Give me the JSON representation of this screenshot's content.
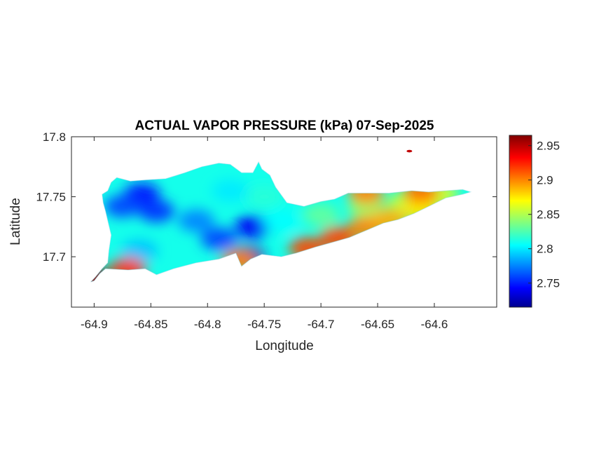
{
  "chart_data": {
    "type": "heatmap",
    "title": "ACTUAL VAPOR PRESSURE (kPa) 07-Sep-2025",
    "xlabel": "Longitude",
    "ylabel": "Latitude",
    "xlim": [
      -64.92,
      -64.545
    ],
    "ylim": [
      17.658,
      17.8
    ],
    "x_ticks": [
      -64.9,
      -64.85,
      -64.8,
      -64.75,
      -64.7,
      -64.65,
      -64.6
    ],
    "x_tick_labels": [
      "-64.9",
      "-64.85",
      "-64.8",
      "-64.75",
      "-64.7",
      "-64.65",
      "-64.6"
    ],
    "y_ticks": [
      17.7,
      17.75,
      17.8
    ],
    "y_tick_labels": [
      "17.7",
      "17.75",
      "17.8"
    ],
    "colorbar": {
      "range": [
        2.715,
        2.965
      ],
      "ticks": [
        2.75,
        2.8,
        2.85,
        2.9,
        2.95
      ],
      "tick_labels": [
        "2.75",
        "2.8",
        "2.85",
        "2.9",
        "2.95"
      ],
      "colormap": "jet"
    },
    "island_outline_lonlat": [
      [
        -64.9,
        17.68
      ],
      [
        -64.895,
        17.686
      ],
      [
        -64.89,
        17.69
      ],
      [
        -64.87,
        17.689
      ],
      [
        -64.855,
        17.69
      ],
      [
        -64.845,
        17.685
      ],
      [
        -64.83,
        17.69
      ],
      [
        -64.81,
        17.695
      ],
      [
        -64.79,
        17.698
      ],
      [
        -64.775,
        17.703
      ],
      [
        -64.77,
        17.692
      ],
      [
        -64.762,
        17.698
      ],
      [
        -64.752,
        17.702
      ],
      [
        -64.735,
        17.7
      ],
      [
        -64.722,
        17.703
      ],
      [
        -64.705,
        17.708
      ],
      [
        -64.69,
        17.712
      ],
      [
        -64.675,
        17.716
      ],
      [
        -64.66,
        17.722
      ],
      [
        -64.645,
        17.728
      ],
      [
        -64.632,
        17.731
      ],
      [
        -64.618,
        17.736
      ],
      [
        -64.605,
        17.742
      ],
      [
        -64.59,
        17.749
      ],
      [
        -64.575,
        17.752
      ],
      [
        -64.568,
        17.754
      ],
      [
        -64.575,
        17.756
      ],
      [
        -64.59,
        17.755
      ],
      [
        -64.605,
        17.754
      ],
      [
        -64.62,
        17.755
      ],
      [
        -64.64,
        17.753
      ],
      [
        -64.66,
        17.753
      ],
      [
        -64.676,
        17.753
      ],
      [
        -64.688,
        17.748
      ],
      [
        -64.7,
        17.746
      ],
      [
        -64.715,
        17.742
      ],
      [
        -64.73,
        17.745
      ],
      [
        -64.74,
        17.758
      ],
      [
        -64.745,
        17.768
      ],
      [
        -64.752,
        17.773
      ],
      [
        -64.755,
        17.779
      ],
      [
        -64.76,
        17.77
      ],
      [
        -64.77,
        17.77
      ],
      [
        -64.78,
        17.777
      ],
      [
        -64.79,
        17.778
      ],
      [
        -64.805,
        17.775
      ],
      [
        -64.82,
        17.77
      ],
      [
        -64.837,
        17.765
      ],
      [
        -64.855,
        17.764
      ],
      [
        -64.868,
        17.763
      ],
      [
        -64.88,
        17.766
      ],
      [
        -64.885,
        17.762
      ],
      [
        -64.888,
        17.755
      ],
      [
        -64.893,
        17.752
      ],
      [
        -64.892,
        17.745
      ],
      [
        -64.89,
        17.738
      ],
      [
        -64.888,
        17.73
      ],
      [
        -64.885,
        17.718
      ],
      [
        -64.887,
        17.705
      ],
      [
        -64.888,
        17.695
      ],
      [
        -64.893,
        17.69
      ],
      [
        -64.899,
        17.683
      ],
      [
        -64.903,
        17.679
      ]
    ],
    "islet_lonlat": [
      -64.622,
      17.788
    ],
    "value_field_points": [
      {
        "lon": -64.858,
        "lat": 17.752,
        "value": 2.745
      },
      {
        "lon": -64.845,
        "lat": 17.738,
        "value": 2.755
      },
      {
        "lon": -64.875,
        "lat": 17.742,
        "value": 2.76
      },
      {
        "lon": -64.765,
        "lat": 17.7,
        "value": 2.725
      },
      {
        "lon": -64.76,
        "lat": 17.725,
        "value": 2.74
      },
      {
        "lon": -64.79,
        "lat": 17.715,
        "value": 2.76
      },
      {
        "lon": -64.81,
        "lat": 17.73,
        "value": 2.775
      },
      {
        "lon": -64.86,
        "lat": 17.705,
        "value": 2.79
      },
      {
        "lon": -64.78,
        "lat": 17.755,
        "value": 2.8
      },
      {
        "lon": -64.75,
        "lat": 17.75,
        "value": 2.815
      },
      {
        "lon": -64.735,
        "lat": 17.73,
        "value": 2.805
      },
      {
        "lon": -64.7,
        "lat": 17.735,
        "value": 2.83
      },
      {
        "lon": -64.66,
        "lat": 17.742,
        "value": 2.845
      },
      {
        "lon": -64.625,
        "lat": 17.745,
        "value": 2.855
      },
      {
        "lon": -64.595,
        "lat": 17.752,
        "value": 2.86
      },
      {
        "lon": -64.712,
        "lat": 17.707,
        "value": 2.915
      },
      {
        "lon": -64.685,
        "lat": 17.716,
        "value": 2.915
      },
      {
        "lon": -64.66,
        "lat": 17.725,
        "value": 2.9
      },
      {
        "lon": -64.64,
        "lat": 17.731,
        "value": 2.89
      },
      {
        "lon": -64.612,
        "lat": 17.739,
        "value": 2.875
      },
      {
        "lon": -64.66,
        "lat": 17.753,
        "value": 2.9
      },
      {
        "lon": -64.612,
        "lat": 17.754,
        "value": 2.905
      },
      {
        "lon": -64.9,
        "lat": 17.681,
        "value": 2.96
      },
      {
        "lon": -64.87,
        "lat": 17.69,
        "value": 2.92
      },
      {
        "lon": -64.772,
        "lat": 17.697,
        "value": 2.9
      },
      {
        "lon": -64.622,
        "lat": 17.788,
        "value": 2.96
      }
    ]
  }
}
